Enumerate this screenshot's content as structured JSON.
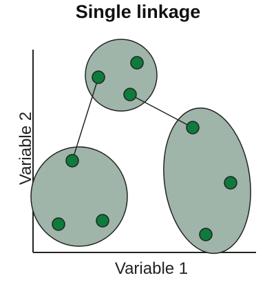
{
  "title": "Single linkage",
  "axes": {
    "xlabel": "Variable 1",
    "ylabel": "Variable 2"
  },
  "colors": {
    "cluster_fill": "#9FB5A9",
    "outline": "#222222",
    "point": "#0E7A3C"
  },
  "clusters": [
    "top",
    "bottom-left",
    "right"
  ],
  "linkage": "single"
}
